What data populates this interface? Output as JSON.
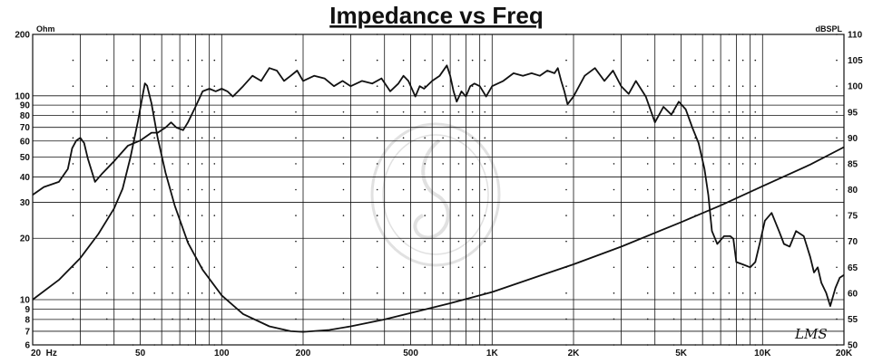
{
  "chart_data": {
    "type": "line",
    "title": "Impedance vs Freq",
    "signature": "LMS",
    "x_scale": "log",
    "xlim": [
      20,
      20000
    ],
    "x_ticks": [
      {
        "value": 20,
        "label": "20  Hz"
      },
      {
        "value": 50,
        "label": "50"
      },
      {
        "value": 100,
        "label": "100"
      },
      {
        "value": 200,
        "label": "200"
      },
      {
        "value": 500,
        "label": "500"
      },
      {
        "value": 1000,
        "label": "1K"
      },
      {
        "value": 2000,
        "label": "2K"
      },
      {
        "value": 5000,
        "label": "5K"
      },
      {
        "value": 10000,
        "label": "10K"
      },
      {
        "value": 20000,
        "label": "20K"
      }
    ],
    "x_gridlines": [
      30,
      40,
      50,
      60,
      70,
      80,
      90,
      100,
      200,
      300,
      400,
      500,
      600,
      700,
      800,
      900,
      1000,
      2000,
      3000,
      4000,
      5000,
      6000,
      7000,
      8000,
      9000,
      10000
    ],
    "left_axis": {
      "unit": "Ohm",
      "scale": "log",
      "range": [
        6,
        200
      ],
      "ticks": [
        200,
        100,
        90,
        80,
        70,
        60,
        50,
        40,
        30,
        20,
        10,
        9,
        8,
        7,
        6
      ]
    },
    "right_axis": {
      "unit": "dBSPL",
      "scale": "linear",
      "range": [
        50,
        110
      ],
      "ticks": [
        110,
        105,
        100,
        95,
        90,
        85,
        80,
        75,
        70,
        65,
        60,
        55,
        50
      ]
    },
    "grid": true,
    "series": [
      {
        "id": "impedance",
        "axis": "left",
        "points": [
          [
            20,
            10
          ],
          [
            25,
            12.5
          ],
          [
            30,
            16
          ],
          [
            35,
            21
          ],
          [
            40,
            28
          ],
          [
            43,
            35
          ],
          [
            46,
            50
          ],
          [
            49,
            75
          ],
          [
            51,
            100
          ],
          [
            52,
            115
          ],
          [
            53,
            112
          ],
          [
            55,
            92
          ],
          [
            58,
            62
          ],
          [
            62,
            42
          ],
          [
            67,
            29
          ],
          [
            75,
            19
          ],
          [
            85,
            14
          ],
          [
            100,
            10.5
          ],
          [
            120,
            8.5
          ],
          [
            150,
            7.4
          ],
          [
            180,
            7.0
          ],
          [
            200,
            6.95
          ],
          [
            250,
            7.1
          ],
          [
            300,
            7.4
          ],
          [
            400,
            8.0
          ],
          [
            500,
            8.6
          ],
          [
            700,
            9.6
          ],
          [
            1000,
            10.9
          ],
          [
            1500,
            13.1
          ],
          [
            2000,
            14.9
          ],
          [
            3000,
            18.2
          ],
          [
            5000,
            24
          ],
          [
            7000,
            29
          ],
          [
            10000,
            36
          ],
          [
            15000,
            46
          ],
          [
            20000,
            56
          ]
        ]
      },
      {
        "id": "spl",
        "axis": "right",
        "points": [
          [
            20,
            79
          ],
          [
            22,
            80.5
          ],
          [
            25,
            81.5
          ],
          [
            27,
            84
          ],
          [
            28,
            88
          ],
          [
            29,
            89.5
          ],
          [
            30,
            90
          ],
          [
            31,
            89
          ],
          [
            32,
            86
          ],
          [
            34,
            81.5
          ],
          [
            36,
            83
          ],
          [
            40,
            85.5
          ],
          [
            45,
            88.5
          ],
          [
            50,
            89.5
          ],
          [
            55,
            91
          ],
          [
            58,
            91
          ],
          [
            62,
            92
          ],
          [
            65,
            93
          ],
          [
            68,
            92
          ],
          [
            72,
            91.5
          ],
          [
            75,
            93
          ],
          [
            80,
            96
          ],
          [
            85,
            99
          ],
          [
            90,
            99.5
          ],
          [
            95,
            99
          ],
          [
            100,
            99.5
          ],
          [
            105,
            99
          ],
          [
            110,
            98
          ],
          [
            115,
            99
          ],
          [
            120,
            100
          ],
          [
            130,
            102
          ],
          [
            140,
            101
          ],
          [
            150,
            103.5
          ],
          [
            160,
            103
          ],
          [
            170,
            101
          ],
          [
            180,
            102
          ],
          [
            190,
            103
          ],
          [
            200,
            101
          ],
          [
            220,
            102
          ],
          [
            240,
            101.5
          ],
          [
            260,
            100
          ],
          [
            280,
            101
          ],
          [
            300,
            100
          ],
          [
            330,
            101
          ],
          [
            360,
            100.5
          ],
          [
            390,
            101.5
          ],
          [
            420,
            99
          ],
          [
            450,
            100.5
          ],
          [
            470,
            102
          ],
          [
            490,
            101
          ],
          [
            520,
            98
          ],
          [
            540,
            100
          ],
          [
            560,
            99.5
          ],
          [
            600,
            101
          ],
          [
            640,
            102
          ],
          [
            680,
            104
          ],
          [
            700,
            102
          ],
          [
            720,
            99
          ],
          [
            740,
            97
          ],
          [
            770,
            99
          ],
          [
            800,
            98
          ],
          [
            830,
            100
          ],
          [
            860,
            100.5
          ],
          [
            900,
            100
          ],
          [
            950,
            98
          ],
          [
            1000,
            100
          ],
          [
            1100,
            101
          ],
          [
            1200,
            102.5
          ],
          [
            1300,
            102
          ],
          [
            1400,
            102.5
          ],
          [
            1500,
            102
          ],
          [
            1600,
            103
          ],
          [
            1700,
            102.5
          ],
          [
            1750,
            103.5
          ],
          [
            1800,
            101
          ],
          [
            1850,
            99
          ],
          [
            1900,
            96.5
          ],
          [
            2000,
            98
          ],
          [
            2200,
            102
          ],
          [
            2400,
            103.5
          ],
          [
            2600,
            101
          ],
          [
            2800,
            103
          ],
          [
            3000,
            100
          ],
          [
            3200,
            98.5
          ],
          [
            3400,
            101
          ],
          [
            3700,
            98
          ],
          [
            4000,
            93
          ],
          [
            4300,
            96
          ],
          [
            4600,
            94.5
          ],
          [
            4900,
            97
          ],
          [
            5200,
            95.5
          ],
          [
            5500,
            92
          ],
          [
            5800,
            89
          ],
          [
            6100,
            84
          ],
          [
            6300,
            79
          ],
          [
            6500,
            72
          ],
          [
            6800,
            69.5
          ],
          [
            7200,
            71
          ],
          [
            7600,
            71
          ],
          [
            7800,
            70.5
          ],
          [
            8000,
            66
          ],
          [
            8500,
            65.5
          ],
          [
            9000,
            65
          ],
          [
            9400,
            66
          ],
          [
            9800,
            70
          ],
          [
            10200,
            74
          ],
          [
            10800,
            75.5
          ],
          [
            11500,
            72
          ],
          [
            12000,
            69.5
          ],
          [
            12600,
            69
          ],
          [
            13300,
            72
          ],
          [
            14200,
            71
          ],
          [
            15000,
            67
          ],
          [
            15500,
            64
          ],
          [
            16000,
            65
          ],
          [
            16500,
            62
          ],
          [
            17200,
            60
          ],
          [
            17800,
            57.5
          ],
          [
            18600,
            61
          ],
          [
            19300,
            63
          ],
          [
            20000,
            63.5
          ]
        ]
      }
    ],
    "style": {
      "line_color": "#111111",
      "grid_color": "#111111",
      "background": "#ffffff"
    }
  }
}
